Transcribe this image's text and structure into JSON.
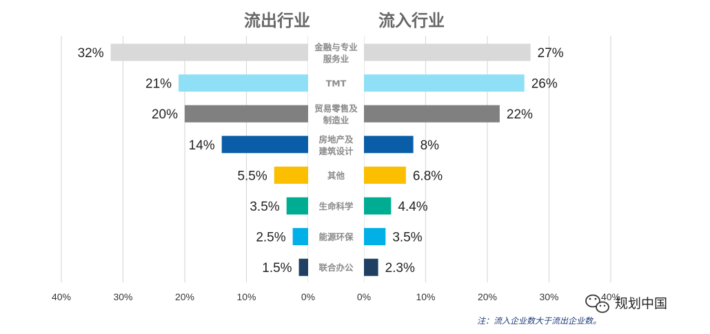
{
  "chart_data": {
    "type": "bar",
    "titles": {
      "left": "流出行业",
      "right": "流入行业"
    },
    "categories": [
      [
        "金融与专业",
        "服务业"
      ],
      [
        "TMT"
      ],
      [
        "贸易零售及",
        "制造业"
      ],
      [
        "房地产及",
        "建筑设计"
      ],
      [
        "其他"
      ],
      [
        "生命科学"
      ],
      [
        "能源环保"
      ],
      [
        "联合办公"
      ]
    ],
    "series": [
      {
        "side": "left",
        "values": [
          32,
          21,
          20,
          14,
          5.5,
          3.5,
          2.5,
          1.5
        ],
        "labels": [
          "32%",
          "21%",
          "20%",
          "14%",
          "5.5%",
          "3.5%",
          "2.5%",
          "1.5%"
        ]
      },
      {
        "side": "right",
        "values": [
          27,
          26,
          22,
          8,
          6.8,
          4.4,
          3.5,
          2.3
        ],
        "labels": [
          "27%",
          "26%",
          "22%",
          "8%",
          "6.8%",
          "4.4%",
          "3.5%",
          "2.3%"
        ]
      }
    ],
    "colors": [
      "#d9d9d9",
      "#8fe0f7",
      "#808080",
      "#0a5ea8",
      "#fbbf00",
      "#00ad93",
      "#00b0e6",
      "#1f3f63"
    ],
    "xlim": [
      0,
      40
    ],
    "ticks_left": [
      "40%",
      "30%",
      "20%",
      "10%",
      "0%"
    ],
    "ticks_right": [
      "0%",
      "10%",
      "20%",
      "30%",
      "40%"
    ],
    "grid": true
  },
  "note": "注：流入企业数大于流出企业数。",
  "watermark": "规划中国"
}
